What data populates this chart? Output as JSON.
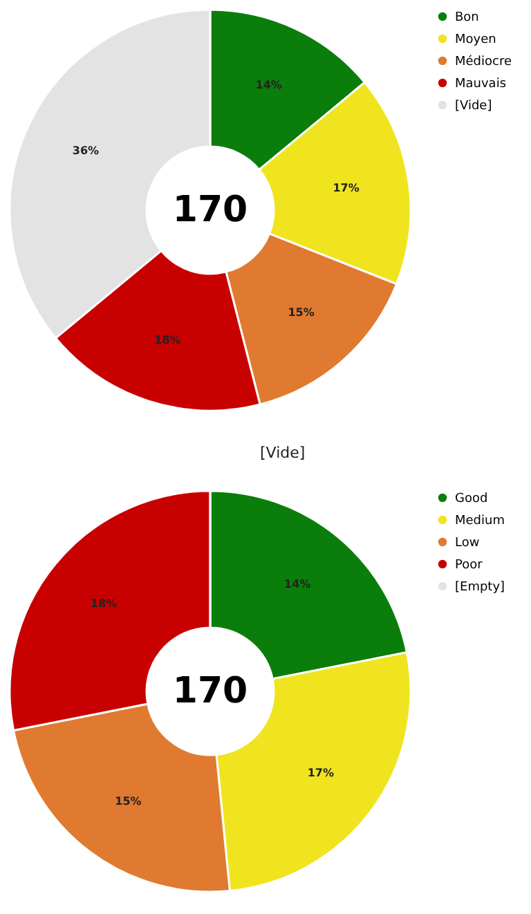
{
  "chart_data": [
    {
      "type": "donut",
      "categories": [
        "Bon",
        "Moyen",
        "Médiocre",
        "Mauvais",
        "[Vide]"
      ],
      "values": [
        14,
        17,
        15,
        18,
        36
      ],
      "colors": [
        "#0b7d0b",
        "#f0e41e",
        "#e07a30",
        "#c80000",
        "#e3e3e3"
      ],
      "value_labels": [
        "14%",
        "17%",
        "15%",
        "18%",
        "36%"
      ],
      "legend": "right",
      "annotations": [
        "170",
        "[Vide]"
      ]
    },
    {
      "type": "donut",
      "categories": [
        "Good",
        "Medium",
        "Low",
        "Poor",
        "[Empty]"
      ],
      "values": [
        14,
        17,
        15,
        18,
        0
      ],
      "colors": [
        "#0b7d0b",
        "#f0e41e",
        "#e07a30",
        "#c80000",
        "#e3e3e3"
      ],
      "value_labels": [
        "14%",
        "17%",
        "15%",
        "18%",
        null
      ],
      "legend": "right",
      "annotations": [
        "170"
      ]
    }
  ]
}
